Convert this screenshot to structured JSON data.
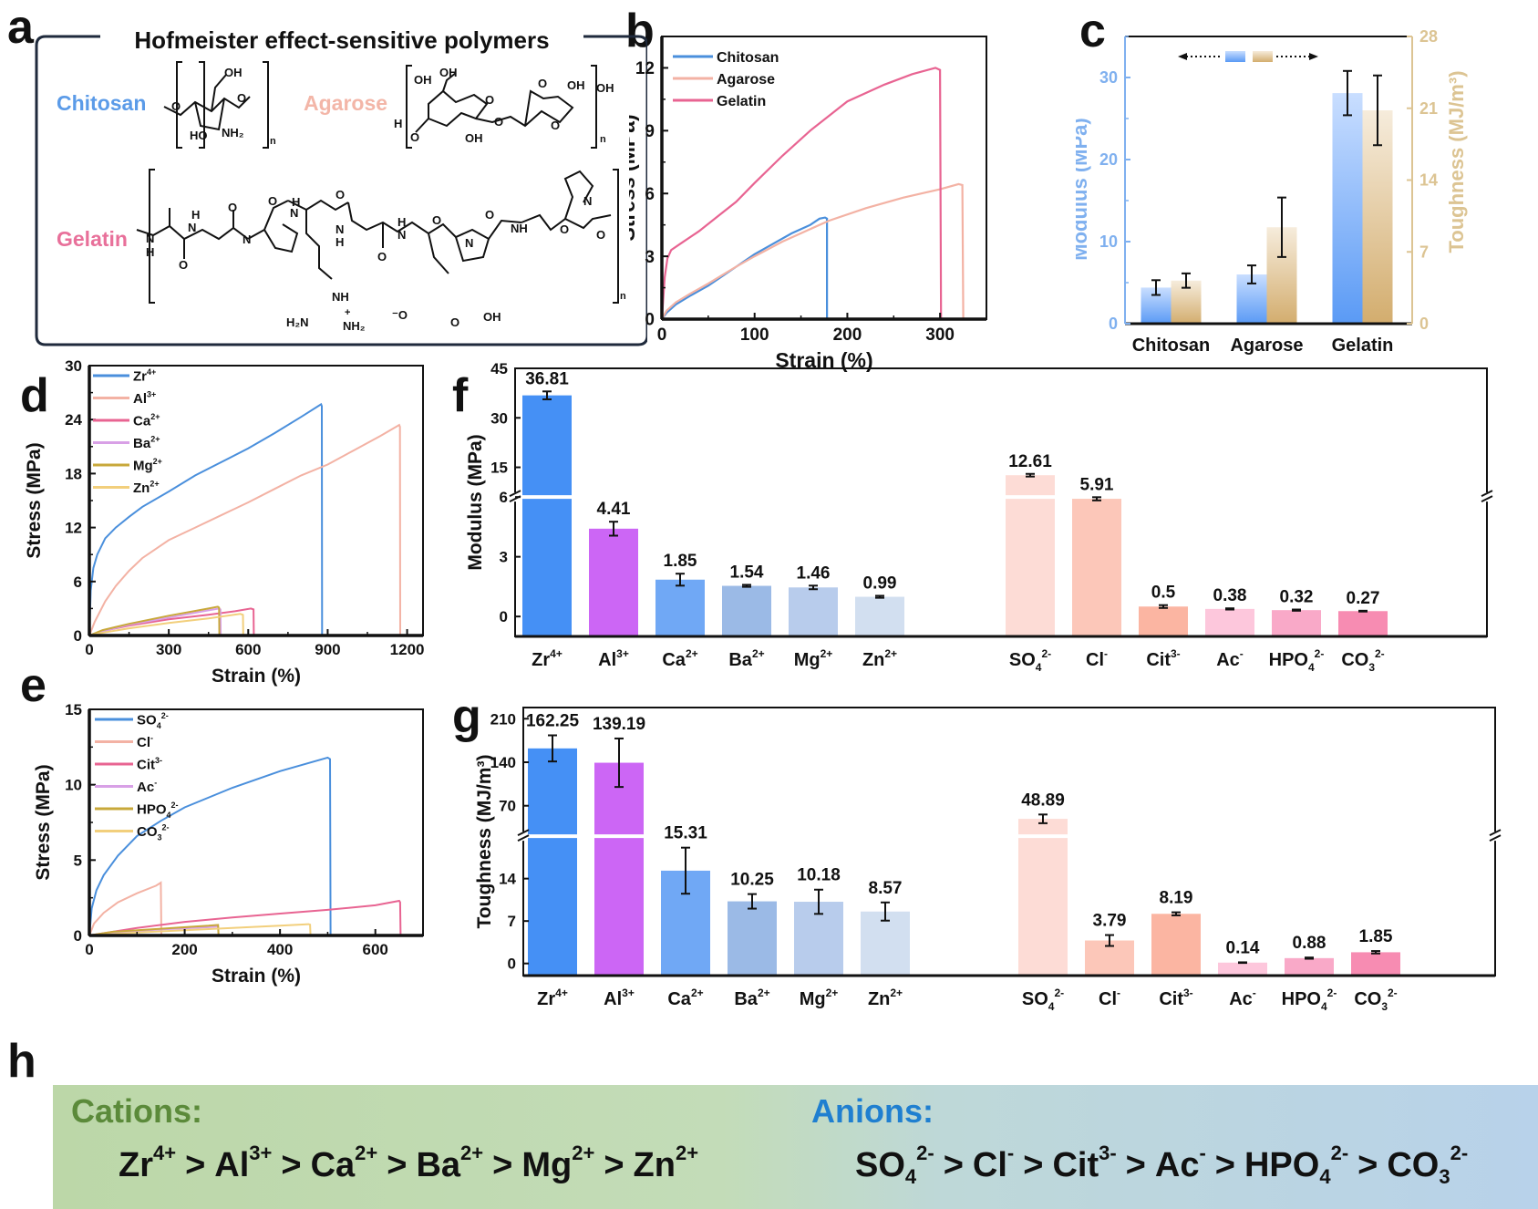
{
  "panel_labels": {
    "a": "a",
    "b": "b",
    "c": "c",
    "d": "d",
    "e": "e",
    "f": "f",
    "g": "g",
    "h": "h"
  },
  "panel_a": {
    "title": "Hofmeister effect-sensitive polymers",
    "polymers": [
      {
        "name": "Chitosan",
        "color": "#5b9be8"
      },
      {
        "name": "Agarose",
        "color": "#f3b6a8"
      },
      {
        "name": "Gelatin",
        "color": "#e8709a"
      }
    ],
    "atom_labels": {
      "chitosan": [
        "OH",
        "O",
        "O",
        "HO",
        "NH2",
        "n"
      ],
      "agarose": [
        "OH",
        "OH",
        "O",
        "O",
        "OH",
        "OH",
        "O",
        "O",
        "H",
        "OH",
        "n"
      ],
      "gelatin": [
        "N",
        "H",
        "H",
        "N",
        "O",
        "O",
        "N",
        "O",
        "H",
        "N",
        "O",
        "N",
        "H",
        "H",
        "N",
        "O",
        "N",
        "O",
        "NH",
        "O",
        "N",
        "O",
        "NH",
        "H2N",
        "NH2",
        "+",
        "-O",
        "O",
        "OH",
        "n"
      ]
    }
  },
  "chart_data": [
    {
      "id": "b",
      "type": "line",
      "xlabel": "Strain (%)",
      "ylabel": "Stress (MPa)",
      "xlim": [
        0,
        350
      ],
      "ylim": [
        0,
        13.5
      ],
      "xticks": [
        0,
        100,
        200,
        300
      ],
      "yticks": [
        0,
        3,
        6,
        9,
        12
      ],
      "legend_position": "top-left",
      "series": [
        {
          "name": "Chitosan",
          "color": "#4a8fdc",
          "x": [
            0,
            5,
            15,
            30,
            50,
            80,
            100,
            120,
            140,
            160,
            170,
            176,
            178,
            178
          ],
          "y": [
            0,
            0.3,
            0.7,
            1.1,
            1.6,
            2.5,
            3.1,
            3.6,
            4.1,
            4.5,
            4.8,
            4.85,
            4.8,
            0
          ]
        },
        {
          "name": "Agarose",
          "color": "#f3b2a4",
          "x": [
            0,
            5,
            15,
            30,
            50,
            80,
            100,
            130,
            180,
            220,
            260,
            300,
            320,
            324,
            325
          ],
          "y": [
            0,
            0.4,
            0.8,
            1.2,
            1.7,
            2.5,
            3.0,
            3.7,
            4.7,
            5.3,
            5.8,
            6.2,
            6.45,
            6.4,
            0
          ]
        },
        {
          "name": "Gelatin",
          "color": "#e86492",
          "x": [
            0,
            3,
            6,
            10,
            20,
            40,
            60,
            80,
            100,
            130,
            160,
            200,
            240,
            270,
            295,
            300,
            301
          ],
          "y": [
            0,
            2.0,
            2.9,
            3.3,
            3.6,
            4.2,
            4.9,
            5.6,
            6.5,
            7.8,
            9.0,
            10.4,
            11.2,
            11.7,
            12.0,
            11.9,
            0
          ]
        }
      ]
    },
    {
      "id": "c",
      "type": "bar",
      "categories": [
        "Chitosan",
        "Agarose",
        "Gelatin"
      ],
      "ylabel": "Modulus (MPa)",
      "y2label": "Toughness (MJ/m³)",
      "ylim": [
        0,
        35
      ],
      "y2lim": [
        0,
        28
      ],
      "yticks": [
        0,
        10,
        20,
        30
      ],
      "y2ticks": [
        0,
        7,
        14,
        21,
        28
      ],
      "legend_arrows": {
        "left": "←",
        "right": "→"
      },
      "series": [
        {
          "name": "Modulus",
          "axis": "left",
          "color": "#6ea6f5",
          "values": [
            4.4,
            6.0,
            28.1
          ],
          "errors": [
            0.9,
            1.1,
            2.7
          ]
        },
        {
          "name": "Toughness",
          "axis": "right",
          "color": "#d9b77e",
          "values": [
            4.2,
            9.4,
            20.8
          ],
          "errors": [
            0.7,
            2.9,
            3.4
          ]
        }
      ]
    },
    {
      "id": "d",
      "type": "line",
      "xlabel": "Strain (%)",
      "ylabel": "Stress (MPa)",
      "xlim": [
        0,
        1260
      ],
      "ylim": [
        0,
        30
      ],
      "xticks": [
        0,
        300,
        600,
        900,
        1200
      ],
      "yticks": [
        0,
        6,
        12,
        18,
        24,
        30
      ],
      "legend_position": "top-left",
      "series": [
        {
          "name": "Zr4+",
          "base": "Zr",
          "sup": "4+",
          "sub": "",
          "color": "#4a8fdc",
          "x": [
            0,
            5,
            15,
            30,
            60,
            100,
            150,
            200,
            300,
            400,
            500,
            600,
            700,
            800,
            875,
            878,
            879
          ],
          "y": [
            0,
            5,
            7.5,
            9,
            10.8,
            12,
            13.2,
            14.3,
            16,
            17.8,
            19.3,
            20.8,
            22.5,
            24.3,
            25.7,
            25.5,
            0
          ]
        },
        {
          "name": "Al3+",
          "base": "Al",
          "sup": "3+",
          "sub": "",
          "color": "#f3b2a4",
          "x": [
            0,
            20,
            60,
            100,
            150,
            200,
            300,
            400,
            500,
            600,
            700,
            800,
            900,
            1000,
            1100,
            1170,
            1173,
            1174
          ],
          "y": [
            0,
            1.5,
            3.8,
            5.5,
            7.2,
            8.6,
            10.6,
            12.0,
            13.4,
            14.8,
            16.3,
            17.8,
            19.0,
            20.6,
            22.2,
            23.4,
            23.2,
            0
          ]
        },
        {
          "name": "Ca2+",
          "base": "Ca",
          "sup": "2+",
          "sub": "",
          "color": "#e86492",
          "x": [
            0,
            50,
            150,
            300,
            450,
            550,
            610,
            620,
            621
          ],
          "y": [
            0,
            0.5,
            1.1,
            1.8,
            2.3,
            2.7,
            3.0,
            2.9,
            0
          ]
        },
        {
          "name": "Ba2+",
          "base": "Ba",
          "sup": "2+",
          "sub": "",
          "color": "#d8a0e6",
          "x": [
            0,
            50,
            150,
            300,
            450,
            490,
            495,
            496
          ],
          "y": [
            0,
            0.5,
            1.2,
            2.0,
            2.8,
            3.0,
            2.9,
            0
          ]
        },
        {
          "name": "Mg2+",
          "base": "Mg",
          "sup": "2+",
          "sub": "",
          "color": "#c8a83a",
          "x": [
            0,
            50,
            150,
            300,
            450,
            485,
            490,
            491
          ],
          "y": [
            0,
            0.6,
            1.3,
            2.2,
            3.0,
            3.2,
            3.1,
            0
          ]
        },
        {
          "name": "Zn2+",
          "base": "Zn",
          "sup": "2+",
          "sub": "",
          "color": "#f2cf7c",
          "x": [
            0,
            50,
            150,
            300,
            450,
            570,
            580,
            581
          ],
          "y": [
            0,
            0.3,
            0.8,
            1.4,
            1.9,
            2.4,
            2.3,
            0
          ]
        }
      ]
    },
    {
      "id": "e",
      "type": "line",
      "xlabel": "Strain (%)",
      "ylabel": "Stress (MPa)",
      "xlim": [
        0,
        700
      ],
      "ylim": [
        0,
        15
      ],
      "xticks": [
        0,
        200,
        400,
        600
      ],
      "yticks": [
        0,
        5,
        10,
        15
      ],
      "legend_position": "top-left",
      "series": [
        {
          "name": "SO42-",
          "base": "SO",
          "sub": "4",
          "sup": "2-",
          "color": "#4a8fdc",
          "x": [
            0,
            5,
            15,
            30,
            60,
            100,
            150,
            200,
            300,
            400,
            500,
            505,
            506
          ],
          "y": [
            0,
            1.8,
            3.0,
            4.0,
            5.3,
            6.6,
            7.6,
            8.5,
            9.8,
            10.9,
            11.8,
            11.7,
            0
          ]
        },
        {
          "name": "Cl-",
          "base": "Cl",
          "sub": "",
          "sup": "-",
          "color": "#f3b2a4",
          "x": [
            0,
            10,
            30,
            60,
            100,
            140,
            150,
            151
          ],
          "y": [
            0,
            0.8,
            1.5,
            2.2,
            2.8,
            3.3,
            3.5,
            0
          ]
        },
        {
          "name": "Cit3-",
          "base": "Cit",
          "sub": "",
          "sup": "3-",
          "color": "#e86492",
          "x": [
            0,
            100,
            200,
            300,
            400,
            500,
            600,
            650,
            652,
            653
          ],
          "y": [
            0,
            0.5,
            0.9,
            1.2,
            1.45,
            1.7,
            2.0,
            2.3,
            2.2,
            0
          ]
        },
        {
          "name": "Ac-",
          "base": "Ac",
          "sub": "",
          "sup": "-",
          "color": "#d8a0e6",
          "x": [
            0,
            50,
            150,
            250,
            270,
            271
          ],
          "y": [
            0,
            0.2,
            0.4,
            0.55,
            0.6,
            0
          ]
        },
        {
          "name": "HPO42-",
          "base": "HPO",
          "sub": "4",
          "sup": "2-",
          "color": "#c8a83a",
          "x": [
            0,
            50,
            150,
            250,
            270,
            271
          ],
          "y": [
            0,
            0.25,
            0.45,
            0.65,
            0.7,
            0
          ]
        },
        {
          "name": "CO32-",
          "base": "CO",
          "sub": "3",
          "sup": "2-",
          "color": "#f2cf7c",
          "x": [
            0,
            100,
            200,
            300,
            400,
            460,
            463,
            464
          ],
          "y": [
            0,
            0.2,
            0.35,
            0.5,
            0.65,
            0.75,
            0.72,
            0
          ]
        }
      ]
    },
    {
      "id": "f",
      "type": "bar",
      "ylabel": "Modulus (MPa)",
      "broken_axis": {
        "lower": [
          -1,
          6
        ],
        "upper": [
          6,
          45
        ],
        "lower_ticks": [
          0,
          3,
          6
        ],
        "upper_ticks": [
          15,
          30,
          45
        ]
      },
      "groups": [
        {
          "name": "cations",
          "categories": [
            {
              "base": "Zr",
              "sub": "",
              "sup": "4+"
            },
            {
              "base": "Al",
              "sub": "",
              "sup": "3+"
            },
            {
              "base": "Ca",
              "sub": "",
              "sup": "2+"
            },
            {
              "base": "Ba",
              "sub": "",
              "sup": "2+"
            },
            {
              "base": "Mg",
              "sub": "",
              "sup": "2+"
            },
            {
              "base": "Zn",
              "sub": "",
              "sup": "2+"
            }
          ],
          "values": [
            36.81,
            4.41,
            1.85,
            1.54,
            1.46,
            0.99
          ],
          "labels": [
            "36.81",
            "4.41",
            "1.85",
            "1.54",
            "1.46",
            "0.99"
          ],
          "errors": [
            1.2,
            0.35,
            0.3,
            0.05,
            0.09,
            0.05
          ],
          "colors": [
            "#4590f5",
            "#cc66f5",
            "#70a8f5",
            "#9bbae6",
            "#b8ccec",
            "#d2dff0"
          ]
        },
        {
          "name": "anions",
          "categories": [
            {
              "base": "SO",
              "sub": "4",
              "sup": "2-"
            },
            {
              "base": "Cl",
              "sub": "",
              "sup": "-"
            },
            {
              "base": "Cit",
              "sub": "",
              "sup": "3-"
            },
            {
              "base": "Ac",
              "sub": "",
              "sup": "-"
            },
            {
              "base": "HPO",
              "sub": "4",
              "sup": "2-"
            },
            {
              "base": "CO",
              "sub": "3",
              "sup": "2-"
            }
          ],
          "values": [
            12.61,
            5.91,
            0.5,
            0.38,
            0.32,
            0.27
          ],
          "labels": [
            "12.61",
            "5.91",
            "0.5",
            "0.38",
            "0.32",
            "0.27"
          ],
          "errors": [
            0.4,
            0.08,
            0.07,
            0.03,
            0.03,
            0.02
          ],
          "colors": [
            "#fddcd6",
            "#fcc7b9",
            "#fbb5a2",
            "#fdc7dc",
            "#f9a9c8",
            "#f78cb2"
          ]
        }
      ]
    },
    {
      "id": "g",
      "type": "bar",
      "ylabel": "Toughness (MJ/m³)",
      "broken_axis": {
        "lower": [
          -2,
          21
        ],
        "upper": [
          21,
          228
        ],
        "lower_ticks": [
          0,
          7,
          14
        ],
        "upper_ticks": [
          70,
          140,
          210
        ]
      },
      "groups": [
        {
          "name": "cations",
          "categories": [
            {
              "base": "Zr",
              "sub": "",
              "sup": "4+"
            },
            {
              "base": "Al",
              "sub": "",
              "sup": "3+"
            },
            {
              "base": "Ca",
              "sub": "",
              "sup": "2+"
            },
            {
              "base": "Ba",
              "sub": "",
              "sup": "2+"
            },
            {
              "base": "Mg",
              "sub": "",
              "sup": "2+"
            },
            {
              "base": "Zn",
              "sub": "",
              "sup": "2+"
            }
          ],
          "values": [
            162.25,
            139.19,
            15.31,
            10.25,
            10.18,
            8.57
          ],
          "labels": [
            "162.25",
            "139.19",
            "15.31",
            "10.25",
            "10.18",
            "8.57"
          ],
          "errors": [
            21,
            39,
            3.8,
            1.2,
            2.0,
            1.5
          ],
          "colors": [
            "#4590f5",
            "#cc66f5",
            "#70a8f5",
            "#9bbae6",
            "#b8ccec",
            "#d2dff0"
          ]
        },
        {
          "name": "anions",
          "categories": [
            {
              "base": "SO",
              "sub": "4",
              "sup": "2-"
            },
            {
              "base": "Cl",
              "sub": "",
              "sup": "-"
            },
            {
              "base": "Cit",
              "sub": "",
              "sup": "3-"
            },
            {
              "base": "Ac",
              "sub": "",
              "sup": "-"
            },
            {
              "base": "HPO",
              "sub": "4",
              "sup": "2-"
            },
            {
              "base": "CO",
              "sub": "3",
              "sup": "2-"
            }
          ],
          "values": [
            48.89,
            3.79,
            8.19,
            0.14,
            0.88,
            1.85
          ],
          "labels": [
            "48.89",
            "3.79",
            "8.19",
            "0.14",
            "0.88",
            "1.85"
          ],
          "errors": [
            7,
            0.9,
            0.25,
            0.05,
            0.1,
            0.2
          ],
          "colors": [
            "#fddcd6",
            "#fcc7b9",
            "#fbb5a2",
            "#fdc7dc",
            "#f9a9c8",
            "#f78cb2"
          ]
        }
      ]
    }
  ],
  "panel_h": {
    "cations_title": "Cations:",
    "anions_title": "Anions:",
    "cations_color": "#5b8a3a",
    "anions_color": "#1f7fd0",
    "separator": ">",
    "cations_order": [
      {
        "base": "Zr",
        "sub": "",
        "sup": "4+"
      },
      {
        "base": "Al",
        "sub": "",
        "sup": "3+"
      },
      {
        "base": "Ca",
        "sub": "",
        "sup": "2+"
      },
      {
        "base": "Ba",
        "sub": "",
        "sup": "2+"
      },
      {
        "base": "Mg",
        "sub": "",
        "sup": "2+"
      },
      {
        "base": "Zn",
        "sub": "",
        "sup": "2+"
      }
    ],
    "anions_order": [
      {
        "base": "SO",
        "sub": "4",
        "sup": "2-"
      },
      {
        "base": "Cl",
        "sub": "",
        "sup": "-"
      },
      {
        "base": "Cit",
        "sub": "",
        "sup": "3-"
      },
      {
        "base": "Ac",
        "sub": "",
        "sup": "-"
      },
      {
        "base": "HPO",
        "sub": "4",
        "sup": "2-"
      },
      {
        "base": "CO",
        "sub": "3",
        "sup": "2-"
      }
    ]
  }
}
